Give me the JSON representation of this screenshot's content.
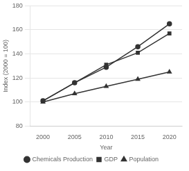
{
  "chart_data": {
    "type": "line",
    "x": [
      2000,
      2005,
      2010,
      2015,
      2020
    ],
    "series": [
      {
        "name": "Chemicals Production",
        "color": "#333333",
        "marker": "circle",
        "values": [
          101,
          116,
          129,
          146,
          165
        ]
      },
      {
        "name": "GDP",
        "color": "#333333",
        "marker": "square",
        "values": [
          101,
          116,
          131,
          141,
          157
        ]
      },
      {
        "name": "Population",
        "color": "#333333",
        "marker": "triangle",
        "values": [
          100,
          107,
          113,
          119,
          125
        ]
      }
    ],
    "xlabel": "Year",
    "ylabel": "Index (2000 = 100)",
    "xlim": [
      1998,
      2022
    ],
    "xticks": [
      2000,
      2005,
      2010,
      2015,
      2020
    ],
    "ylim": [
      80,
      180
    ],
    "yticks": [
      80,
      100,
      120,
      140,
      160,
      180
    ],
    "grid": "y",
    "legend": "bottom"
  }
}
